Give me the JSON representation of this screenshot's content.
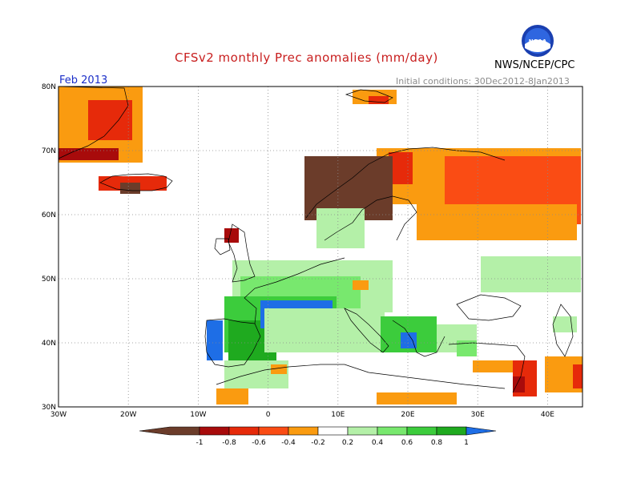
{
  "title": "CFSv2 monthly Prec anomalies (mm/day)",
  "month": "Feb 2013",
  "initial_conditions": "Initial conditions: 30Dec2012-8Jan2013",
  "organization": "NWS/NCEP/CPC",
  "logo_text": "NOAA",
  "colors": {
    "dark_brown": "#6b3c2a",
    "dark_red": "#a80b0b",
    "red": "#e62a0a",
    "orange_red": "#fa4c14",
    "orange": "#fa9b10",
    "light_green": "#b4f0a8",
    "green1": "#78e86e",
    "green2": "#3ccc3c",
    "dark_green": "#1faa1f",
    "blue": "#1e6ee6"
  },
  "map": {
    "lon_range": [
      -30,
      45
    ],
    "lat_range": [
      30,
      80
    ],
    "lon_ticks": [
      "30W",
      "20W",
      "10W",
      "0",
      "10E",
      "20E",
      "30E",
      "40E"
    ],
    "lat_ticks": [
      "30N",
      "40N",
      "50N",
      "60N",
      "70N",
      "80N"
    ]
  },
  "legend": {
    "labels": [
      "-1",
      "-0.8",
      "-0.6",
      "-0.4",
      "-0.2",
      "0.2",
      "0.4",
      "0.6",
      "0.8",
      "1"
    ]
  }
}
